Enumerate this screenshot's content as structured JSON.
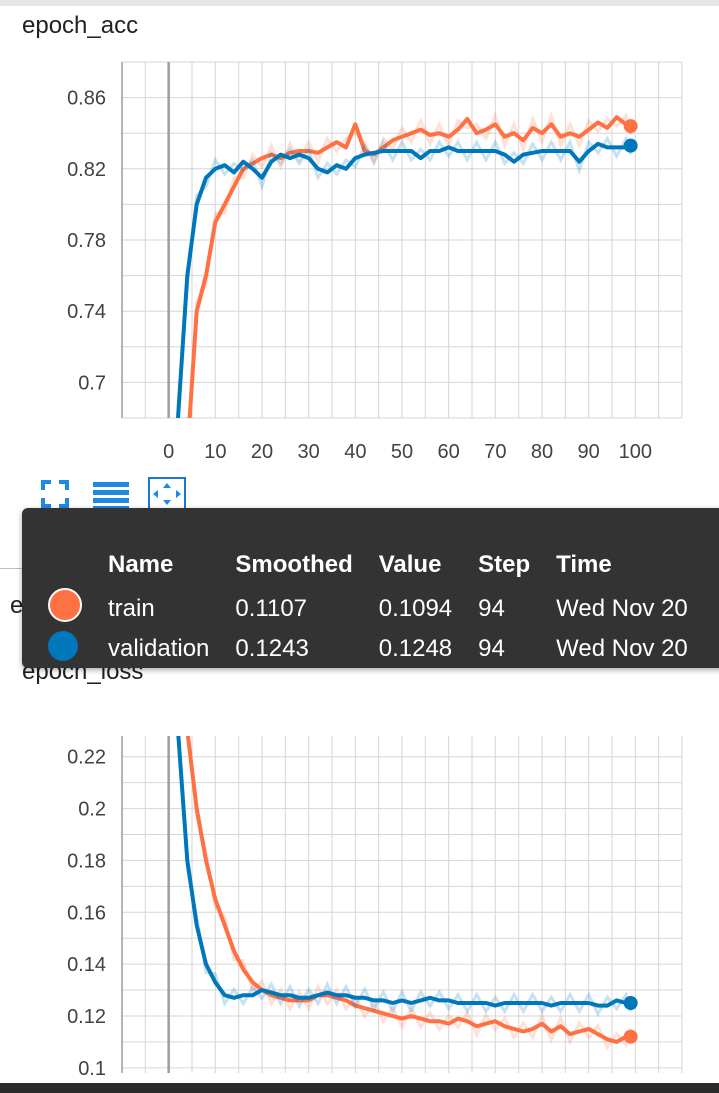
{
  "colors": {
    "train": "#ff7043",
    "validation": "#0077bb",
    "grid": "#d6d6d6",
    "axis": "#9e9e9e"
  },
  "charts": {
    "acc": {
      "title": "epoch_acc"
    },
    "loss": {
      "title": "epoch_loss"
    }
  },
  "toolbar": {
    "icons": [
      "fit-to-screen-icon",
      "toggle-log-icon",
      "fit-domain-icon"
    ]
  },
  "tooltip": {
    "headers": {
      "name": "Name",
      "smoothed": "Smoothed",
      "value": "Value",
      "step": "Step",
      "time": "Time"
    },
    "rows": [
      {
        "name": "train",
        "smoothed": "0.1107",
        "value": "0.1094",
        "step": "94",
        "time": "Wed Nov 20"
      },
      {
        "name": "validation",
        "smoothed": "0.1243",
        "value": "0.1248",
        "step": "94",
        "time": "Wed Nov 20"
      }
    ]
  },
  "chart_data": [
    {
      "type": "line",
      "title": "epoch_acc",
      "xlabel": "",
      "ylabel": "",
      "xlim": [
        -10,
        110
      ],
      "ylim": [
        0.68,
        0.88
      ],
      "x_ticks": [
        "0",
        "10",
        "20",
        "30",
        "40",
        "50",
        "60",
        "70",
        "80",
        "90",
        "100"
      ],
      "y_ticks": [
        "0.7",
        "0.74",
        "0.78",
        "0.82",
        "0.86"
      ],
      "grid": true,
      "series": [
        {
          "name": "train",
          "x": [
            2,
            4,
            6,
            8,
            10,
            12,
            14,
            16,
            18,
            20,
            22,
            24,
            26,
            28,
            30,
            32,
            34,
            36,
            38,
            40,
            42,
            44,
            46,
            48,
            50,
            52,
            54,
            56,
            58,
            60,
            62,
            64,
            66,
            68,
            70,
            72,
            74,
            76,
            78,
            80,
            82,
            84,
            86,
            88,
            90,
            92,
            94,
            96,
            98,
            99
          ],
          "values": [
            0.6,
            0.66,
            0.74,
            0.76,
            0.79,
            0.8,
            0.81,
            0.82,
            0.823,
            0.826,
            0.828,
            0.826,
            0.829,
            0.83,
            0.83,
            0.829,
            0.832,
            0.835,
            0.832,
            0.845,
            0.83,
            0.828,
            0.832,
            0.836,
            0.838,
            0.84,
            0.842,
            0.839,
            0.84,
            0.838,
            0.842,
            0.848,
            0.84,
            0.842,
            0.845,
            0.838,
            0.84,
            0.836,
            0.843,
            0.84,
            0.845,
            0.838,
            0.84,
            0.838,
            0.842,
            0.846,
            0.843,
            0.849,
            0.845,
            0.844
          ]
        },
        {
          "name": "validation",
          "x": [
            2,
            4,
            6,
            8,
            10,
            12,
            14,
            16,
            18,
            20,
            22,
            24,
            26,
            28,
            30,
            32,
            34,
            36,
            38,
            40,
            42,
            44,
            46,
            48,
            50,
            52,
            54,
            56,
            58,
            60,
            62,
            64,
            66,
            68,
            70,
            72,
            74,
            76,
            78,
            80,
            82,
            84,
            86,
            88,
            90,
            92,
            94,
            96,
            98,
            99
          ],
          "values": [
            0.68,
            0.76,
            0.8,
            0.815,
            0.82,
            0.822,
            0.818,
            0.824,
            0.82,
            0.815,
            0.824,
            0.828,
            0.826,
            0.828,
            0.826,
            0.82,
            0.818,
            0.822,
            0.82,
            0.826,
            0.828,
            0.829,
            0.83,
            0.83,
            0.83,
            0.83,
            0.826,
            0.83,
            0.83,
            0.832,
            0.83,
            0.83,
            0.83,
            0.83,
            0.83,
            0.828,
            0.824,
            0.828,
            0.829,
            0.83,
            0.83,
            0.83,
            0.83,
            0.824,
            0.83,
            0.834,
            0.832,
            0.832,
            0.832,
            0.833
          ]
        }
      ]
    },
    {
      "type": "line",
      "title": "epoch_loss",
      "xlabel": "",
      "ylabel": "",
      "xlim": [
        -10,
        110
      ],
      "ylim": [
        0.098,
        0.228
      ],
      "x_ticks": [],
      "y_ticks": [
        "0.1",
        "0.12",
        "0.14",
        "0.16",
        "0.18",
        "0.2",
        "0.22"
      ],
      "grid": true,
      "series": [
        {
          "name": "train",
          "x": [
            4,
            6,
            8,
            10,
            12,
            14,
            16,
            18,
            20,
            22,
            24,
            26,
            28,
            30,
            32,
            34,
            36,
            38,
            40,
            42,
            44,
            46,
            48,
            50,
            52,
            54,
            56,
            58,
            60,
            62,
            64,
            66,
            68,
            70,
            72,
            74,
            76,
            78,
            80,
            82,
            84,
            86,
            88,
            90,
            92,
            94,
            96,
            98,
            99
          ],
          "values": [
            0.23,
            0.2,
            0.18,
            0.165,
            0.155,
            0.145,
            0.138,
            0.133,
            0.13,
            0.128,
            0.127,
            0.126,
            0.126,
            0.126,
            0.128,
            0.128,
            0.127,
            0.126,
            0.124,
            0.123,
            0.122,
            0.121,
            0.12,
            0.119,
            0.12,
            0.119,
            0.118,
            0.118,
            0.117,
            0.119,
            0.118,
            0.116,
            0.117,
            0.118,
            0.116,
            0.115,
            0.114,
            0.115,
            0.117,
            0.114,
            0.116,
            0.113,
            0.114,
            0.115,
            0.113,
            0.111,
            0.11,
            0.112,
            0.112
          ]
        },
        {
          "name": "validation",
          "x": [
            2,
            4,
            6,
            8,
            10,
            12,
            14,
            16,
            18,
            20,
            22,
            24,
            26,
            28,
            30,
            32,
            34,
            36,
            38,
            40,
            42,
            44,
            46,
            48,
            50,
            52,
            54,
            56,
            58,
            60,
            62,
            64,
            66,
            68,
            70,
            72,
            74,
            76,
            78,
            80,
            82,
            84,
            86,
            88,
            90,
            92,
            94,
            96,
            98,
            99
          ],
          "values": [
            0.23,
            0.18,
            0.155,
            0.14,
            0.133,
            0.128,
            0.127,
            0.128,
            0.128,
            0.13,
            0.129,
            0.128,
            0.128,
            0.127,
            0.127,
            0.128,
            0.129,
            0.128,
            0.128,
            0.127,
            0.127,
            0.126,
            0.126,
            0.125,
            0.126,
            0.125,
            0.126,
            0.127,
            0.126,
            0.126,
            0.125,
            0.125,
            0.125,
            0.125,
            0.124,
            0.125,
            0.125,
            0.125,
            0.125,
            0.125,
            0.124,
            0.125,
            0.125,
            0.125,
            0.125,
            0.124,
            0.124,
            0.126,
            0.125,
            0.125
          ]
        }
      ]
    }
  ]
}
